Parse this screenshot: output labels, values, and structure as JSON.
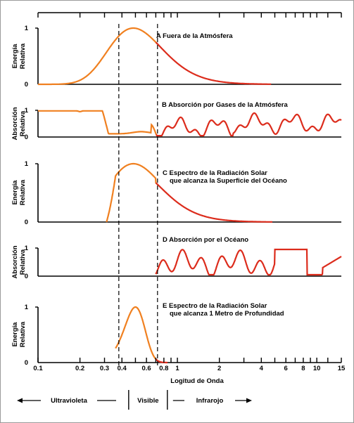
{
  "panels": [
    {
      "id": "A",
      "title_lines": [
        "A  Fuera de la Atmósfera"
      ],
      "ylabel": [
        "Energía",
        "Relativa"
      ],
      "ytick_top": "1",
      "ytick_bottom": "0"
    },
    {
      "id": "B",
      "title_lines": [
        "B  Absorción por Gases de la Atmósfera"
      ],
      "ylabel": [
        "Absorción",
        "Relativa"
      ],
      "ytick_top": "1",
      "ytick_bottom": "0"
    },
    {
      "id": "C",
      "title_lines": [
        "C  Espectro de la Radiación Solar",
        "que alcanza la Superficie del Océano"
      ],
      "ylabel": [
        "Energía",
        "Relativa"
      ],
      "ytick_top": "1",
      "ytick_bottom": "0"
    },
    {
      "id": "D",
      "title_lines": [
        "D  Absorción por el Océano"
      ],
      "ylabel": [
        "Absorción",
        "Relativa"
      ],
      "ytick_top": "1",
      "ytick_bottom": "0"
    },
    {
      "id": "E",
      "title_lines": [
        "E  Espectro de la Radiación Solar",
        "que alcanza 1 Metro de Profundidad"
      ],
      "ylabel": [
        "Energía",
        "Relativa"
      ],
      "ytick_top": "1",
      "ytick_bottom": "0"
    }
  ],
  "x_axis": {
    "label": "Logitud de Onda",
    "scale": "log",
    "range": [
      0.1,
      15
    ],
    "tick_values": [
      0.1,
      0.2,
      0.3,
      0.4,
      0.6,
      0.8,
      1,
      2,
      4,
      6,
      8,
      10,
      15
    ],
    "tick_labels": [
      "0.1",
      "0.2",
      "0.3",
      "0.4",
      "0.6",
      "0.8",
      "1",
      "2",
      "4",
      "6",
      "8",
      "10",
      "15"
    ],
    "minor_ticks": [
      0.5,
      0.7,
      0.9,
      3,
      5,
      7,
      9,
      12
    ]
  },
  "visible_band": {
    "from": 0.38,
    "to": 0.72
  },
  "bands": {
    "uv": "Ultravioleta",
    "visible": "Visible",
    "ir": "Infrarojo"
  },
  "colors": {
    "uv_visible_curve": "#f08020",
    "ir_curve": "#dc2c1c",
    "axis": "#000000"
  }
}
